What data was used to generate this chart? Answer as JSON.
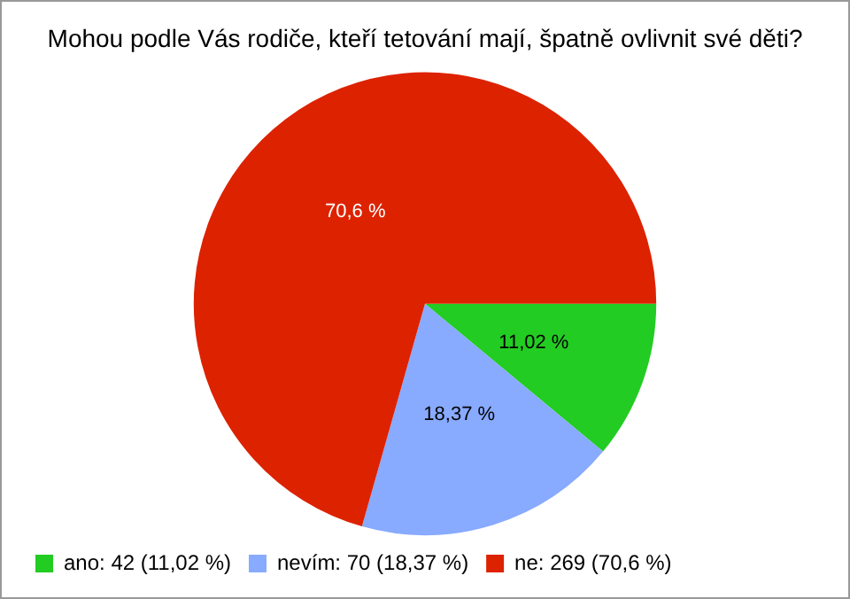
{
  "chart_data": {
    "type": "pie",
    "title": "Mohou podle Vás rodiče, kteří tetování mají, špatně ovlivnit své děti?",
    "categories": [
      "ano: 42 (11,02 %)",
      "nevím: 70 (18,37 %)",
      "ne: 269 (70,6 %)"
    ],
    "values": [
      11.02,
      18.37,
      70.6
    ],
    "colors": [
      "#22cc22",
      "#88aaff",
      "#dd2200"
    ],
    "value_labels": [
      "11,02 %",
      "18,37 %",
      "70,6 %"
    ],
    "legend": "bottom left"
  }
}
